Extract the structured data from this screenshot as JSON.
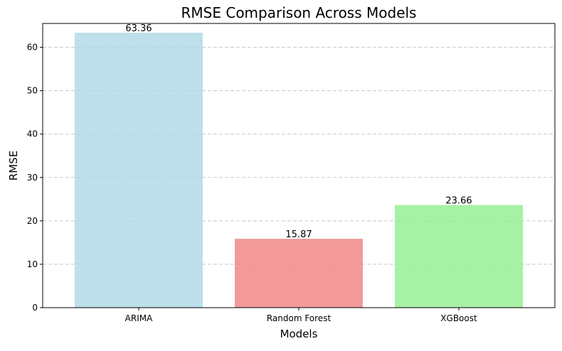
{
  "chart_data": {
    "type": "bar",
    "title": "RMSE Comparison Across Models",
    "xlabel": "Models",
    "ylabel": "RMSE",
    "categories": [
      "ARIMA",
      "Random Forest",
      "XGBoost"
    ],
    "values": [
      63.36,
      15.87,
      23.66
    ],
    "value_labels": [
      "63.36",
      "15.87",
      "23.66"
    ],
    "colors": [
      "#add8e6",
      "#f08080",
      "#90ee90"
    ],
    "bar_alpha": 0.8,
    "ylim": [
      0,
      65.5
    ],
    "yticks": [
      0,
      10,
      20,
      30,
      40,
      50,
      60
    ],
    "grid": {
      "y": true,
      "style": "dashed"
    },
    "legend": "none"
  }
}
